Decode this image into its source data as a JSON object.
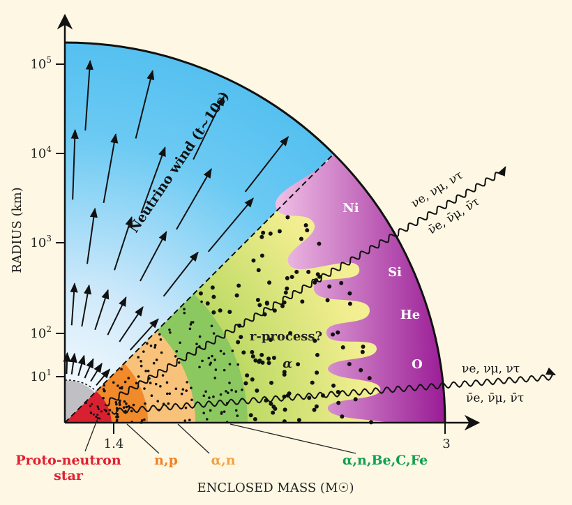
{
  "axes": {
    "y_label": "RADIUS (km)",
    "x_label": "ENCLOSED MASS (M☉)",
    "y_ticks": [
      {
        "base": "10",
        "exp": "1"
      },
      {
        "base": "10",
        "exp": "2"
      },
      {
        "base": "10",
        "exp": "3"
      },
      {
        "base": "10",
        "exp": "4"
      },
      {
        "base": "10",
        "exp": "5"
      }
    ],
    "x_ticks": [
      "1.4",
      "3"
    ]
  },
  "regions": {
    "wind": "Neutrino wind (t~10s)",
    "rprocess": "r-process?",
    "alpha": "α",
    "ni": "Ni",
    "si": "Si",
    "he": "He",
    "o": "O"
  },
  "labels": {
    "pns_line1": "Proto-neutron",
    "pns_line2": "star",
    "np": "n,p",
    "an": "α,n",
    "anbe": "α,n,Be,C,Fe"
  },
  "neutrinos": {
    "upper_top": "νe, νμ, ντ",
    "upper_bottom": "ν̄e, ν̄μ, ν̄τ",
    "lower_top": "νe, νμ, ντ",
    "lower_bottom": "ν̄e, ν̄μ, ν̄τ"
  },
  "colors": {
    "pns": "#e02030",
    "np": "#f08020",
    "an": "#f5a040",
    "green": "#10a050",
    "magenta": "#a0209a",
    "wind": "#5ac4f2"
  }
}
